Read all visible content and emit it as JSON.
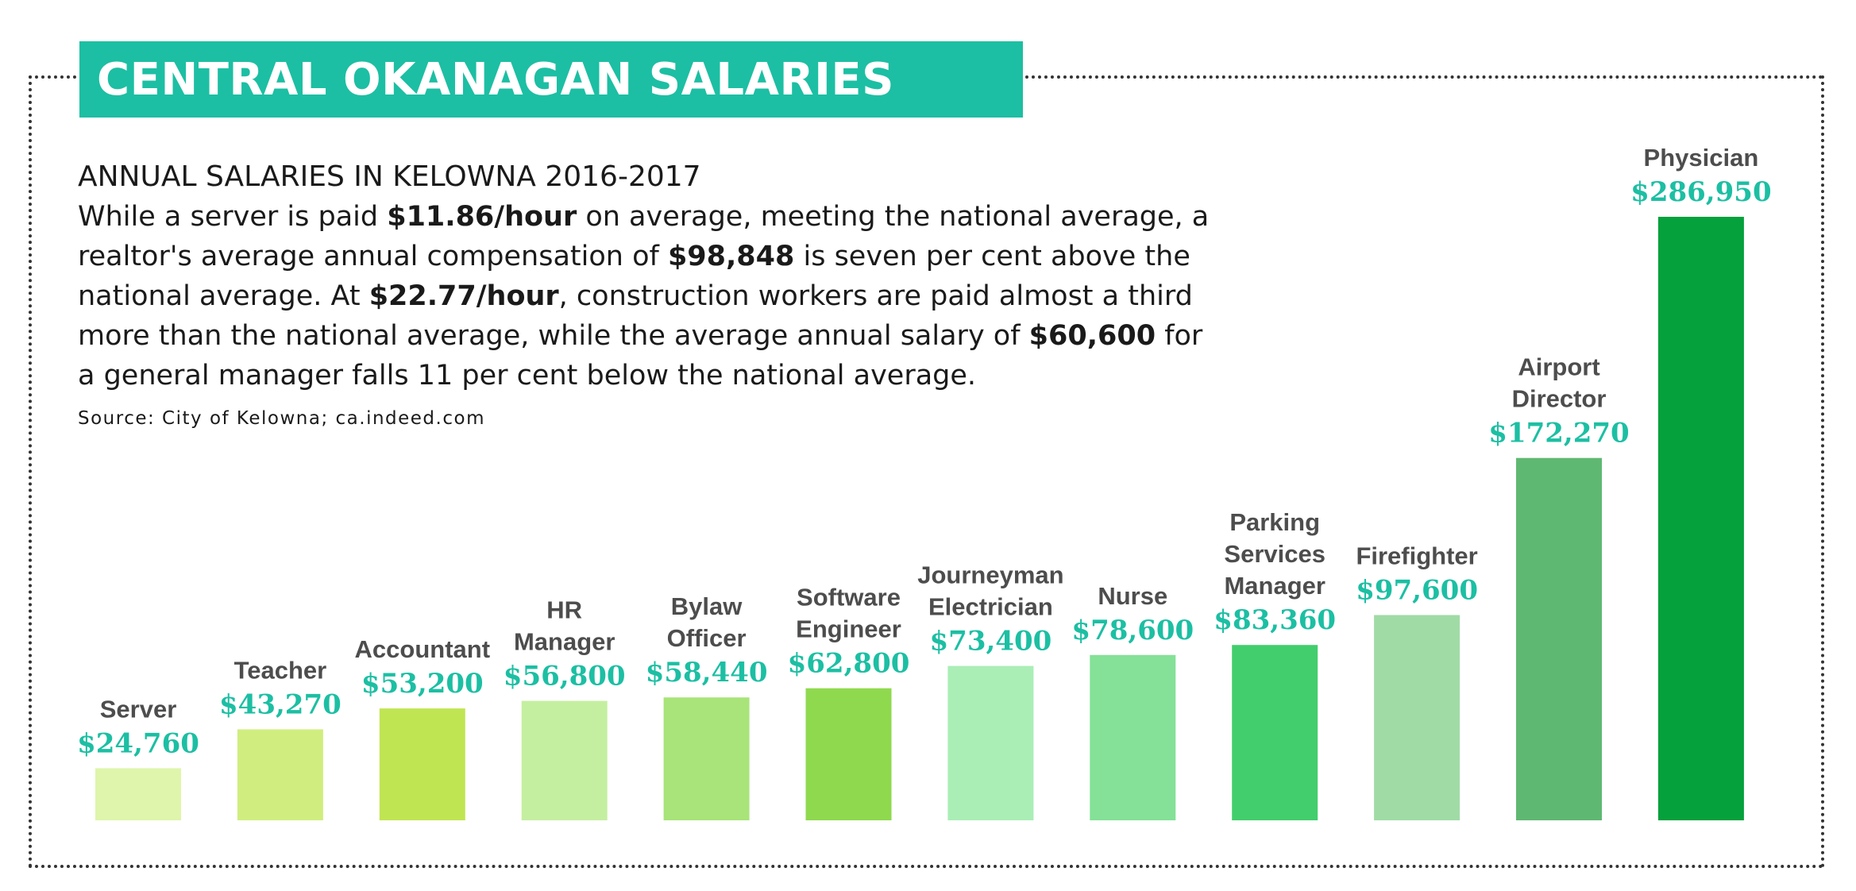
{
  "title": "CENTRAL OKANAGAN SALARIES",
  "subtitle": "ANNUAL SALARIES IN KELOWNA 2016-2017",
  "description": [
    {
      "text": "While a server is paid ",
      "bold": false
    },
    {
      "text": "$11.86/hour",
      "bold": true
    },
    {
      "text": " on average, meeting the national average, a realtor's average annual compensation of ",
      "bold": false
    },
    {
      "text": "$98,848",
      "bold": true
    },
    {
      "text": " is seven per cent above the national average. At ",
      "bold": false
    },
    {
      "text": "$22.77/hour",
      "bold": true
    },
    {
      "text": ", construction workers are paid almost a third more than the national average, while the average annual salary of ",
      "bold": false
    },
    {
      "text": "$60,600",
      "bold": true
    },
    {
      "text": " for a general manager falls 11 per cent below the national average.",
      "bold": false
    }
  ],
  "source": "Source: City of Kelowna; ca.indeed.com",
  "colors": {
    "banner": "#1cbfa3",
    "value_text": "#1cbfa3",
    "label_text": "#4d4d4d"
  },
  "chart_data": {
    "type": "bar",
    "title": "CENTRAL OKANAGAN SALARIES",
    "xlabel": "",
    "ylabel": "",
    "ylim": [
      0,
      286950
    ],
    "grid": false,
    "categories": [
      [
        "Server"
      ],
      [
        "Teacher"
      ],
      [
        "Accountant"
      ],
      [
        "HR",
        "Manager"
      ],
      [
        "Bylaw",
        "Officer"
      ],
      [
        "Software",
        "Engineer"
      ],
      [
        "Journeyman",
        "Electrician"
      ],
      [
        "Nurse"
      ],
      [
        "Parking",
        "Services",
        "Manager"
      ],
      [
        "Firefighter"
      ],
      [
        "Airport",
        "Director"
      ],
      [
        "Physician"
      ]
    ],
    "values": [
      24760,
      43270,
      53200,
      56800,
      58440,
      62800,
      73400,
      78600,
      83360,
      97600,
      172270,
      286950
    ],
    "value_labels": [
      "$24,760",
      "$43,270",
      "$53,200",
      "$56,800",
      "$58,440",
      "$62,800",
      "$73,400",
      "$78,600",
      "$83,360",
      "$97,600",
      "$172,270",
      "$286,950"
    ],
    "bar_colors": [
      "#def5ab",
      "#d0ee7f",
      "#c0e552",
      "#c5efa0",
      "#a8e479",
      "#8fd94e",
      "#aaeeb6",
      "#84e197",
      "#42ce6d",
      "#a0dba6",
      "#5fb872",
      "#04a13c"
    ]
  }
}
